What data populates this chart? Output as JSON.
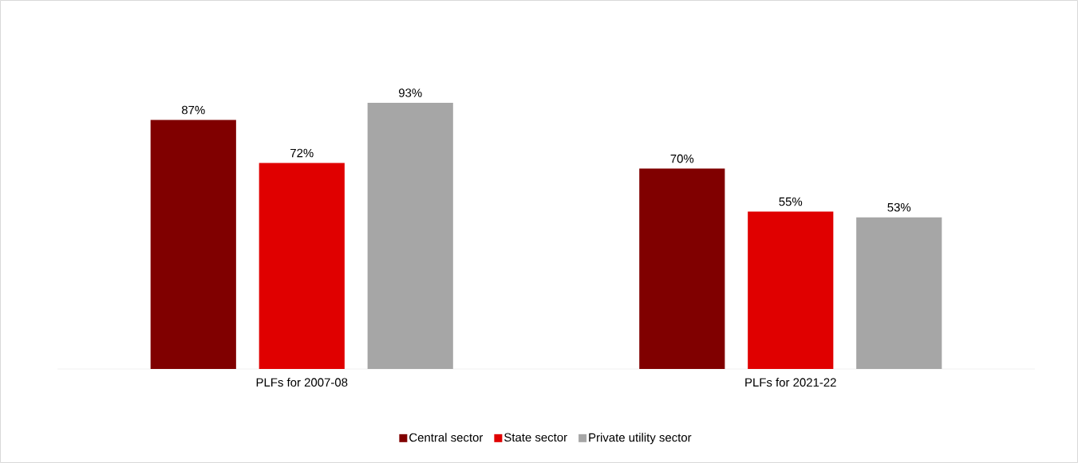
{
  "chart_data": {
    "type": "bar",
    "categories": [
      "PLFs for 2007-08",
      "PLFs for 2021-22"
    ],
    "series": [
      {
        "name": "Central sector",
        "color": "#800000",
        "values": [
          87,
          70
        ],
        "value_labels": [
          "87%",
          "70%"
        ]
      },
      {
        "name": "State sector",
        "color": "#e00000",
        "values": [
          72,
          55
        ],
        "value_labels": [
          "72%",
          "55%"
        ]
      },
      {
        "name": "Private utility sector",
        "color": "#a6a6a6",
        "values": [
          93,
          53
        ],
        "value_labels": [
          "93%",
          "53%"
        ]
      }
    ],
    "legend": "bottom"
  }
}
